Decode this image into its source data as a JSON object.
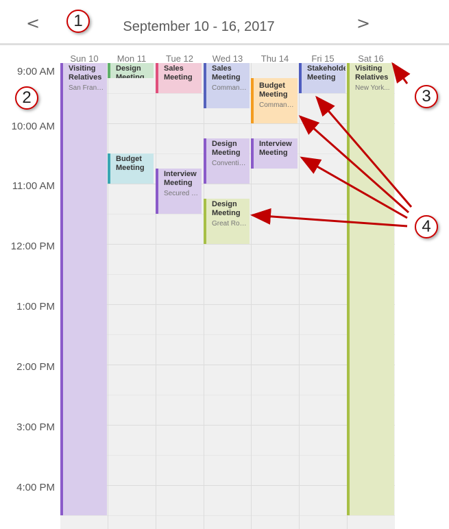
{
  "header": {
    "prev": "<",
    "next": ">",
    "range": "September 10 - 16, 2017"
  },
  "days": [
    "Sun 10",
    "Mon 11",
    "Tue 12",
    "Wed 13",
    "Thu 14",
    "Fri 15",
    "Sat 16"
  ],
  "times": [
    "9:00 AM",
    "10:00 AM",
    "11:00 AM",
    "12:00 PM",
    "1:00 PM",
    "2:00 PM",
    "3:00 PM",
    "4:00 PM"
  ],
  "events": [
    {
      "title": "Visiting Relatives",
      "location": "San Franci...",
      "color": "#8a5ac9",
      "bg": "#d9ccec"
    },
    {
      "title": "Design Meeting",
      "location": "",
      "color": "#5fb06a",
      "bg": "#cde6cf"
    },
    {
      "title": "Sales Meeting",
      "location": "",
      "color": "#e0507c",
      "bg": "#f3cbd8"
    },
    {
      "title": "Sales Meeting",
      "location": "Command...",
      "color": "#5562bd",
      "bg": "#cfd3ee"
    },
    {
      "title": "Budget Meeting",
      "location": "Command...",
      "color": "#f39c1f",
      "bg": "#fde0b5"
    },
    {
      "title": "Stakeholders Meeting",
      "location": "",
      "color": "#4e5cbf",
      "bg": "#cfd3ee"
    },
    {
      "title": "Visiting Relatives",
      "location": "New York...",
      "color": "#a7bf46",
      "bg": "#e3eac3"
    },
    {
      "title": "Budget Meeting",
      "location": "",
      "color": "#3aa6b3",
      "bg": "#c8e6ea"
    },
    {
      "title": "Interview Meeting",
      "location": "Secured Ro...",
      "color": "#8a5ac9",
      "bg": "#d9ccec"
    },
    {
      "title": "Design Meeting",
      "location": "Conventio...",
      "color": "#8a5ac9",
      "bg": "#d9ccec"
    },
    {
      "title": "Interview Meeting",
      "location": "",
      "color": "#8a5ac9",
      "bg": "#d9ccec"
    },
    {
      "title": "Design Meeting",
      "location": "Great Room",
      "color": "#a7bf46",
      "bg": "#e3eac3"
    }
  ],
  "callouts": [
    "1",
    "2",
    "3",
    "4"
  ]
}
